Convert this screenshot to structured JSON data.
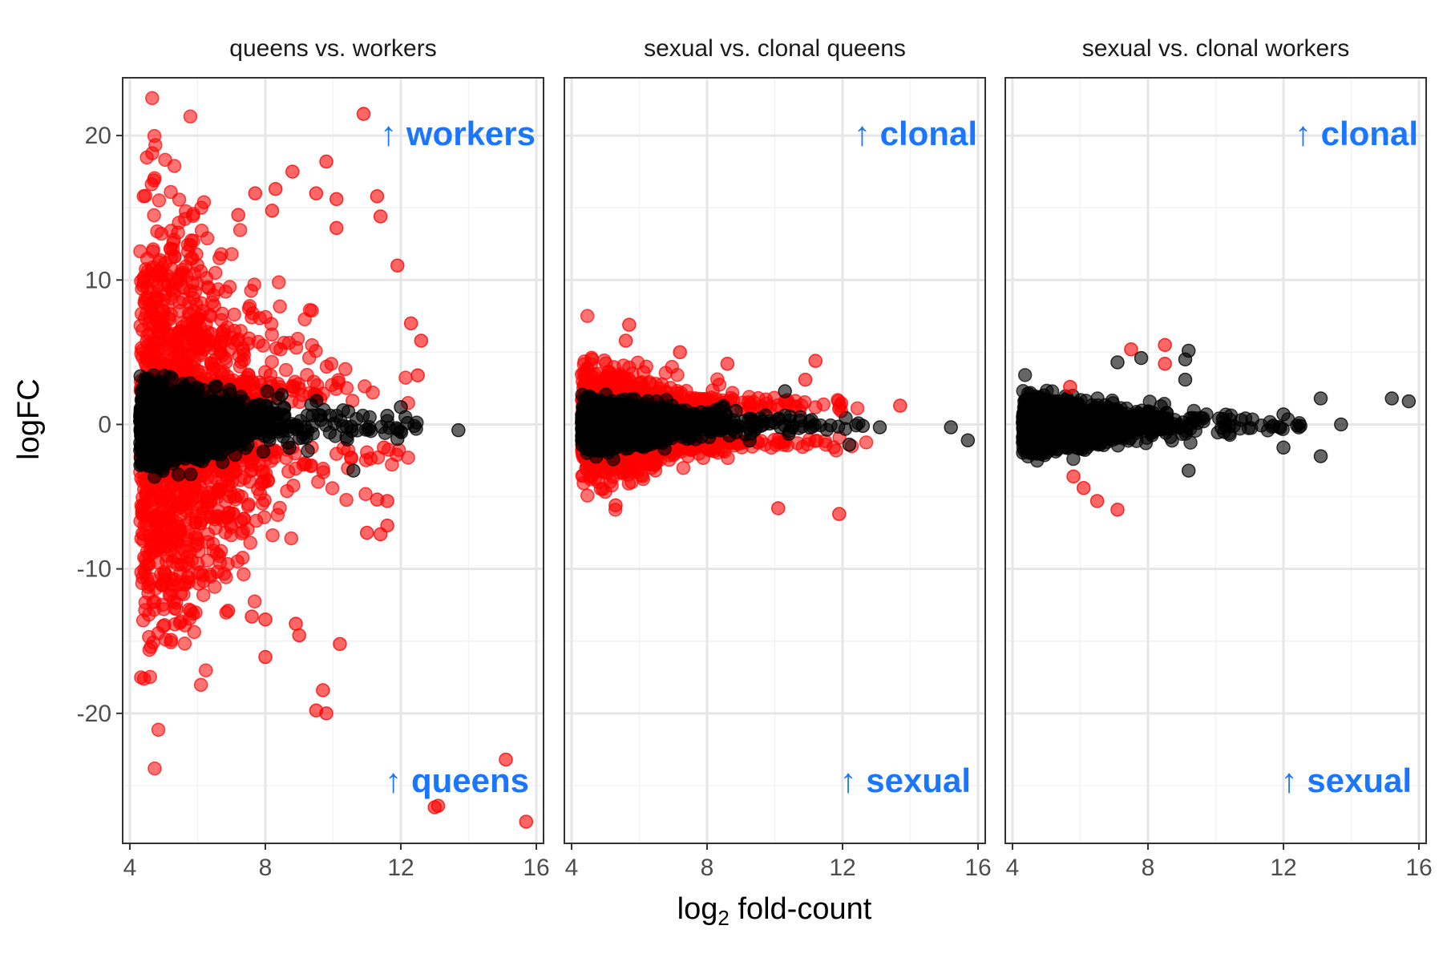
{
  "chart_data": {
    "type": "scatter",
    "ylabel": "logFC",
    "xlabel_main": "log",
    "xlabel_sub": "2",
    "xlabel_rest": " fold-count",
    "xlim": [
      4,
      16
    ],
    "ylim": [
      -29,
      24
    ],
    "x_ticks": [
      4,
      8,
      12,
      16
    ],
    "y_ticks": [
      20,
      10,
      0,
      -10,
      -20
    ],
    "y_tick_labels": [
      "20",
      "10",
      "0",
      "-10",
      "-20"
    ],
    "grid": true,
    "colors": {
      "significant": "#ff0000",
      "not_significant": "#000000",
      "annotation": "#1a75ff",
      "panel_border": "#333333",
      "grid_major": "#e6e6e6",
      "grid_minor": "#f2f2f2"
    },
    "panels": [
      {
        "title": "queens vs. workers",
        "annotation_top": "↑ workers",
        "annotation_bottom": "↑ queens",
        "significant_spread": 7.5,
        "not_significant_spread": 1.3,
        "points": [
          {
            "x": 10.9,
            "y": 21.5,
            "sig": true
          },
          {
            "x": 9.8,
            "y": 18.2,
            "sig": true
          },
          {
            "x": 8.8,
            "y": 17.5,
            "sig": true
          },
          {
            "x": 7.7,
            "y": 16.0,
            "sig": true
          },
          {
            "x": 8.3,
            "y": 16.3,
            "sig": true
          },
          {
            "x": 9.5,
            "y": 16.0,
            "sig": true
          },
          {
            "x": 10.1,
            "y": 15.6,
            "sig": true
          },
          {
            "x": 11.3,
            "y": 15.8,
            "sig": true
          },
          {
            "x": 11.4,
            "y": 14.4,
            "sig": true
          },
          {
            "x": 10.1,
            "y": 13.6,
            "sig": true
          },
          {
            "x": 8.2,
            "y": 14.8,
            "sig": true
          },
          {
            "x": 7.2,
            "y": 14.5,
            "sig": true
          },
          {
            "x": 11.9,
            "y": 11.0,
            "sig": true
          },
          {
            "x": 12.6,
            "y": 5.8,
            "sig": true
          },
          {
            "x": 12.5,
            "y": 3.4,
            "sig": true
          },
          {
            "x": 12.3,
            "y": 7.0,
            "sig": true
          },
          {
            "x": 13.7,
            "y": -0.4,
            "sig": false
          },
          {
            "x": 12.2,
            "y": 0.1,
            "sig": false
          },
          {
            "x": 12.0,
            "y": 1.2,
            "sig": false
          },
          {
            "x": 11.6,
            "y": 0.6,
            "sig": false
          },
          {
            "x": 11.5,
            "y": -1.6,
            "sig": true
          },
          {
            "x": 11.9,
            "y": -1.0,
            "sig": false
          },
          {
            "x": 10.6,
            "y": -3.2,
            "sig": false
          },
          {
            "x": 11.3,
            "y": -5.2,
            "sig": true
          },
          {
            "x": 11.6,
            "y": -7.0,
            "sig": true
          },
          {
            "x": 11.4,
            "y": -7.6,
            "sig": true
          },
          {
            "x": 11.0,
            "y": -7.5,
            "sig": true
          },
          {
            "x": 11.6,
            "y": -5.3,
            "sig": true
          },
          {
            "x": 10.2,
            "y": -15.2,
            "sig": true
          },
          {
            "x": 9.7,
            "y": -18.4,
            "sig": true
          },
          {
            "x": 9.5,
            "y": -19.8,
            "sig": true
          },
          {
            "x": 9.8,
            "y": -20.0,
            "sig": true
          },
          {
            "x": 8.0,
            "y": -16.1,
            "sig": true
          },
          {
            "x": 9.0,
            "y": -14.6,
            "sig": true
          },
          {
            "x": 8.9,
            "y": -13.8,
            "sig": true
          },
          {
            "x": 7.6,
            "y": -13.3,
            "sig": true
          },
          {
            "x": 8.0,
            "y": -13.5,
            "sig": true
          },
          {
            "x": 6.9,
            "y": -12.9,
            "sig": true
          },
          {
            "x": 5.8,
            "y": -12.9,
            "sig": true
          },
          {
            "x": 13.1,
            "y": -26.4,
            "sig": true
          },
          {
            "x": 13.0,
            "y": -26.5,
            "sig": true
          },
          {
            "x": 15.1,
            "y": -23.2,
            "sig": true
          },
          {
            "x": 15.7,
            "y": -27.5,
            "sig": true
          }
        ]
      },
      {
        "title": "sexual vs. clonal queens",
        "annotation_top": "↑ clonal",
        "annotation_bottom": "↑ sexual",
        "significant_spread": 2.0,
        "not_significant_spread": 0.8,
        "points": [
          {
            "x": 5.7,
            "y": 6.9,
            "sig": true
          },
          {
            "x": 5.6,
            "y": 5.8,
            "sig": true
          },
          {
            "x": 7.2,
            "y": 5.0,
            "sig": true
          },
          {
            "x": 4.6,
            "y": 4.5,
            "sig": true
          },
          {
            "x": 8.6,
            "y": 4.2,
            "sig": true
          },
          {
            "x": 11.2,
            "y": 4.4,
            "sig": true
          },
          {
            "x": 10.9,
            "y": 3.1,
            "sig": true
          },
          {
            "x": 10.3,
            "y": 2.3,
            "sig": false
          },
          {
            "x": 13.7,
            "y": 1.3,
            "sig": true
          },
          {
            "x": 11.9,
            "y": 1.1,
            "sig": true
          },
          {
            "x": 12.6,
            "y": -0.1,
            "sig": false
          },
          {
            "x": 13.1,
            "y": -0.2,
            "sig": false
          },
          {
            "x": 15.2,
            "y": -0.2,
            "sig": false
          },
          {
            "x": 15.7,
            "y": -1.1,
            "sig": false
          },
          {
            "x": 12.2,
            "y": -1.4,
            "sig": false
          },
          {
            "x": 11.9,
            "y": -6.2,
            "sig": true
          },
          {
            "x": 10.1,
            "y": -5.8,
            "sig": true
          },
          {
            "x": 5.3,
            "y": -5.6,
            "sig": true
          }
        ]
      },
      {
        "title": "sexual vs. clonal workers",
        "annotation_top": "↑  clonal",
        "annotation_bottom": "↑  sexual",
        "significant_spread": 0,
        "not_significant_spread": 0.9,
        "points": [
          {
            "x": 8.5,
            "y": 5.5,
            "sig": true
          },
          {
            "x": 7.5,
            "y": 5.2,
            "sig": true
          },
          {
            "x": 8.5,
            "y": 4.2,
            "sig": true
          },
          {
            "x": 9.2,
            "y": 5.1,
            "sig": false
          },
          {
            "x": 9.1,
            "y": 4.5,
            "sig": false
          },
          {
            "x": 7.1,
            "y": 4.3,
            "sig": false
          },
          {
            "x": 7.8,
            "y": 4.6,
            "sig": false
          },
          {
            "x": 9.1,
            "y": 3.1,
            "sig": false
          },
          {
            "x": 5.7,
            "y": 2.6,
            "sig": true
          },
          {
            "x": 15.2,
            "y": 1.8,
            "sig": false
          },
          {
            "x": 15.7,
            "y": 1.6,
            "sig": false
          },
          {
            "x": 13.1,
            "y": 1.8,
            "sig": false
          },
          {
            "x": 13.7,
            "y": 0.0,
            "sig": false
          },
          {
            "x": 12.5,
            "y": -0.1,
            "sig": false
          },
          {
            "x": 12.0,
            "y": 0.7,
            "sig": false
          },
          {
            "x": 12.0,
            "y": -1.6,
            "sig": false
          },
          {
            "x": 13.1,
            "y": -2.2,
            "sig": false
          },
          {
            "x": 9.2,
            "y": -3.2,
            "sig": false
          },
          {
            "x": 5.8,
            "y": -3.6,
            "sig": true
          },
          {
            "x": 6.1,
            "y": -4.4,
            "sig": true
          },
          {
            "x": 6.5,
            "y": -5.3,
            "sig": true
          },
          {
            "x": 7.1,
            "y": -5.9,
            "sig": true
          }
        ]
      }
    ]
  }
}
